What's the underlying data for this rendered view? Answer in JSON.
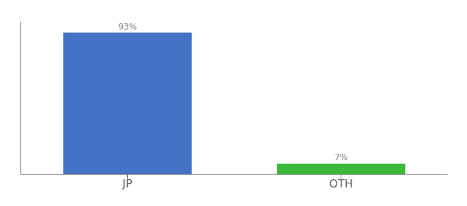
{
  "chart_data": {
    "type": "bar",
    "categories": [
      "JP",
      "OTH"
    ],
    "values": [
      93,
      7
    ],
    "value_labels": [
      "93%",
      "7%"
    ],
    "colors": [
      "#4472c4",
      "#3cb83c"
    ],
    "ylim": [
      0,
      100
    ],
    "data_labels": true,
    "tick_labels": "x"
  }
}
